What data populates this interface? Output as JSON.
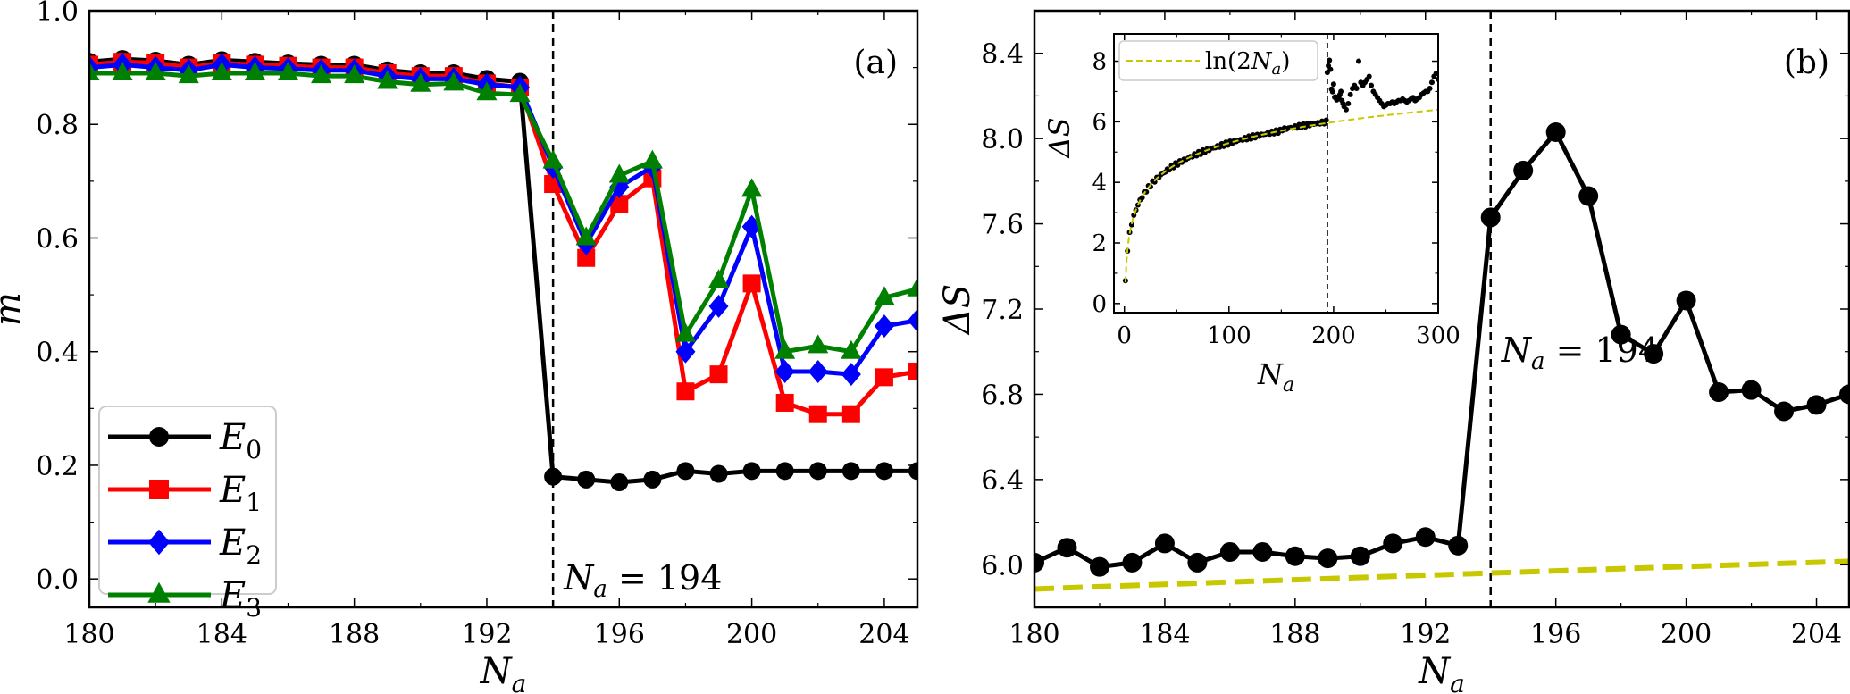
{
  "chart_data": [
    {
      "panel": "(a)",
      "type": "line",
      "xlabel": "N_a",
      "ylabel": "m",
      "xlim": [
        180,
        205
      ],
      "ylim": [
        -0.05,
        1.0
      ],
      "xticks": [
        180,
        184,
        188,
        192,
        196,
        200,
        204
      ],
      "xtick_labels": [
        "180",
        "184",
        "188",
        "192",
        "196",
        "200",
        "204"
      ],
      "yticks": [
        0.0,
        0.2,
        0.4,
        0.6,
        0.8,
        1.0
      ],
      "ytick_labels": [
        "0.0",
        "0.2",
        "0.4",
        "0.6",
        "0.8",
        "1.0"
      ],
      "legend_position": "lower-left",
      "vline": {
        "x": 194,
        "style": "dashed",
        "label": "N_a = 194"
      },
      "x": [
        180,
        181,
        182,
        183,
        184,
        185,
        186,
        187,
        188,
        189,
        190,
        191,
        192,
        193,
        194,
        195,
        196,
        197,
        198,
        199,
        200,
        201,
        202,
        203,
        204,
        205
      ],
      "series": [
        {
          "name": "E0",
          "sub": "0",
          "color": "#000000",
          "marker": "circle",
          "values": [
            0.91,
            0.915,
            0.912,
            0.905,
            0.913,
            0.91,
            0.907,
            0.905,
            0.905,
            0.895,
            0.89,
            0.89,
            0.88,
            0.875,
            0.18,
            0.175,
            0.17,
            0.175,
            0.19,
            0.185,
            0.19,
            0.19,
            0.19,
            0.19,
            0.19,
            0.19
          ]
        },
        {
          "name": "E1",
          "sub": "1",
          "color": "#ff0000",
          "marker": "square",
          "values": [
            0.905,
            0.91,
            0.908,
            0.9,
            0.908,
            0.905,
            0.903,
            0.9,
            0.9,
            0.89,
            0.885,
            0.885,
            0.872,
            0.865,
            0.695,
            0.565,
            0.66,
            0.705,
            0.33,
            0.36,
            0.52,
            0.31,
            0.29,
            0.29,
            0.355,
            0.365
          ]
        },
        {
          "name": "E2",
          "sub": "2",
          "color": "#0000ff",
          "marker": "diamond",
          "values": [
            0.9,
            0.905,
            0.9,
            0.895,
            0.905,
            0.9,
            0.898,
            0.895,
            0.895,
            0.885,
            0.88,
            0.88,
            0.87,
            0.865,
            0.725,
            0.59,
            0.69,
            0.725,
            0.4,
            0.48,
            0.62,
            0.365,
            0.365,
            0.36,
            0.445,
            0.455
          ]
        },
        {
          "name": "E3",
          "sub": "3",
          "color": "#008000",
          "marker": "triangle",
          "values": [
            0.89,
            0.89,
            0.89,
            0.885,
            0.89,
            0.89,
            0.89,
            0.885,
            0.885,
            0.875,
            0.87,
            0.872,
            0.855,
            0.852,
            0.735,
            0.6,
            0.71,
            0.735,
            0.43,
            0.525,
            0.685,
            0.4,
            0.41,
            0.4,
            0.495,
            0.51
          ]
        }
      ]
    },
    {
      "panel": "(b)",
      "type": "line",
      "xlabel": "N_a",
      "ylabel": "ΔS",
      "xlim": [
        180,
        205
      ],
      "ylim": [
        5.8,
        8.6
      ],
      "xticks": [
        180,
        184,
        188,
        192,
        196,
        200,
        204
      ],
      "xtick_labels": [
        "180",
        "184",
        "188",
        "192",
        "196",
        "200",
        "204"
      ],
      "yticks": [
        6.0,
        6.4,
        6.8,
        7.2,
        7.6,
        8.0,
        8.4
      ],
      "ytick_labels": [
        "6.0",
        "6.4",
        "6.8",
        "7.2",
        "7.6",
        "8.0",
        "8.4"
      ],
      "vline": {
        "x": 194,
        "style": "dashed",
        "label": "N_a = 194"
      },
      "x": [
        180,
        181,
        182,
        183,
        184,
        185,
        186,
        187,
        188,
        189,
        190,
        191,
        192,
        193,
        194,
        195,
        196,
        197,
        198,
        199,
        200,
        201,
        202,
        203,
        204,
        205
      ],
      "series": [
        {
          "name": "ΔS",
          "color": "#000000",
          "marker": "circle",
          "values": [
            6.01,
            6.08,
            5.99,
            6.01,
            6.1,
            6.01,
            6.06,
            6.06,
            6.04,
            6.03,
            6.04,
            6.1,
            6.13,
            6.09,
            7.63,
            7.85,
            8.03,
            7.73,
            7.08,
            6.99,
            7.24,
            6.81,
            6.82,
            6.72,
            6.75,
            6.8
          ]
        },
        {
          "name": "ln(2N_a)",
          "color": "#c8c800",
          "style": "dashed",
          "formula": "ln(2x)"
        }
      ],
      "inset": {
        "type": "scatter",
        "xlabel": "N_a",
        "ylabel": "ΔS",
        "xlim": [
          -10,
          300
        ],
        "ylim": [
          -0.3,
          8.9
        ],
        "xticks": [
          0,
          100,
          200,
          300
        ],
        "xtick_labels": [
          "0",
          "100",
          "200",
          "300"
        ],
        "yticks": [
          0,
          2,
          4,
          6,
          8
        ],
        "ytick_labels": [
          "0",
          "2",
          "4",
          "6",
          "8"
        ],
        "legend": "ln(2N_a)",
        "legend_position": "upper-left",
        "vline": {
          "x": 194,
          "style": "dashed"
        },
        "fit": {
          "name": "ln(2N_a)",
          "color": "#c8c800",
          "formula": "ln(2x)"
        },
        "post_transition_points": {
          "x": [
            194,
            195,
            196,
            197,
            198,
            199,
            200,
            201,
            202,
            203,
            204,
            205,
            206,
            207,
            208,
            209,
            210,
            212,
            214,
            216,
            218,
            220,
            222,
            224,
            226,
            228,
            230,
            232,
            234,
            236,
            238,
            240,
            242,
            244,
            246,
            248,
            250,
            252,
            254,
            256,
            258,
            260,
            262,
            264,
            266,
            268,
            270,
            272,
            274,
            276,
            278,
            280,
            282,
            284,
            286,
            288,
            290,
            292,
            294,
            296,
            298,
            300
          ],
          "y": [
            7.63,
            7.85,
            8.03,
            7.73,
            7.08,
            6.99,
            7.24,
            6.81,
            6.82,
            6.72,
            6.75,
            6.8,
            6.9,
            7.0,
            6.7,
            6.6,
            6.5,
            6.4,
            6.6,
            6.9,
            7.1,
            7.2,
            7.1,
            8.0,
            7.3,
            7.2,
            7.3,
            7.4,
            7.5,
            7.2,
            7.0,
            6.9,
            6.8,
            6.7,
            6.6,
            6.5,
            6.55,
            6.6,
            6.6,
            6.65,
            6.6,
            6.65,
            6.7,
            6.7,
            6.75,
            6.7,
            6.65,
            6.7,
            6.75,
            6.8,
            6.7,
            6.75,
            6.8,
            6.9,
            6.95,
            7.0,
            7.0,
            7.1,
            7.3,
            7.5,
            7.6,
            7.4
          ]
        }
      }
    }
  ],
  "labels": {
    "panel_a_tag": "(a)",
    "panel_b_tag": "(b)",
    "annotation_a": "N",
    "annotation_b": "N",
    "annotation_sub": "a",
    "annotation_rest": " = 194",
    "xlabel_main": "N",
    "xlabel_sub": "a",
    "ylabel_a": "m",
    "ylabel_b": "ΔS",
    "legend_E": "E",
    "inset_legend_prefix": "ln(2",
    "inset_legend_N": "N",
    "inset_legend_sub": "a",
    "inset_legend_suffix": ")"
  }
}
